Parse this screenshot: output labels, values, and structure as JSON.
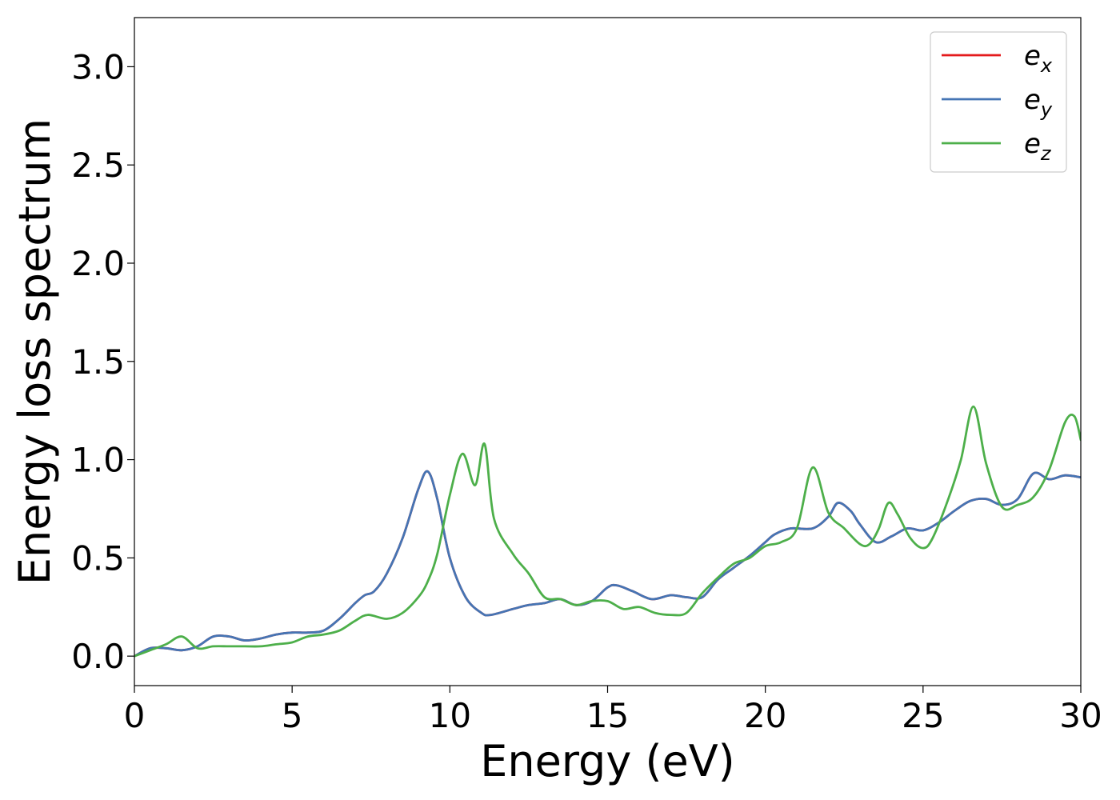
{
  "chart_data": {
    "type": "line",
    "xlabel": "Energy (eV)",
    "ylabel": "Energy loss spectrum",
    "xlim": [
      0,
      30
    ],
    "ylim": [
      -0.15,
      3.25
    ],
    "xticks": [
      0,
      5,
      10,
      15,
      20,
      25,
      30
    ],
    "xtick_labels": [
      "0",
      "5",
      "10",
      "15",
      "20",
      "25",
      "30"
    ],
    "yticks": [
      0.0,
      0.5,
      1.0,
      1.5,
      2.0,
      2.5,
      3.0
    ],
    "ytick_labels": [
      "0.0",
      "0.5",
      "1.0",
      "1.5",
      "2.0",
      "2.5",
      "3.0"
    ],
    "grid": false,
    "legend_position": "top-right",
    "series": [
      {
        "name": "e_x",
        "legend_base": "e",
        "legend_sub": "x",
        "color": "#e41a1c",
        "x": [
          0,
          0.5,
          1.0,
          1.5,
          2.0,
          2.5,
          3.0,
          3.5,
          4.0,
          4.5,
          5.0,
          5.5,
          6.0,
          6.5,
          7.0,
          7.3,
          7.6,
          8.0,
          8.5,
          9.0,
          9.3,
          9.6,
          10.0,
          10.5,
          11.0,
          11.3,
          12.0,
          12.5,
          13.0,
          13.5,
          14.0,
          14.5,
          15.0,
          15.3,
          15.8,
          16.4,
          17.0,
          17.5,
          18.0,
          18.5,
          19.0,
          19.5,
          20.0,
          20.3,
          20.8,
          21.5,
          22.0,
          22.3,
          22.7,
          23.0,
          23.5,
          24.0,
          24.5,
          25.0,
          25.5,
          26.0,
          26.5,
          27.0,
          27.5,
          28.0,
          28.5,
          29.0,
          29.5,
          30.0
        ],
        "y": [
          0.0,
          0.04,
          0.04,
          0.03,
          0.05,
          0.1,
          0.1,
          0.08,
          0.09,
          0.11,
          0.12,
          0.12,
          0.13,
          0.19,
          0.27,
          0.31,
          0.33,
          0.42,
          0.6,
          0.85,
          0.94,
          0.8,
          0.5,
          0.3,
          0.22,
          0.21,
          0.24,
          0.26,
          0.27,
          0.29,
          0.26,
          0.28,
          0.35,
          0.36,
          0.33,
          0.29,
          0.31,
          0.3,
          0.3,
          0.39,
          0.45,
          0.51,
          0.58,
          0.62,
          0.65,
          0.65,
          0.71,
          0.78,
          0.74,
          0.67,
          0.58,
          0.61,
          0.65,
          0.64,
          0.68,
          0.74,
          0.79,
          0.8,
          0.77,
          0.8,
          0.93,
          0.9,
          0.92,
          0.91
        ]
      },
      {
        "name": "e_y",
        "legend_base": "e",
        "legend_sub": "y",
        "color": "#4575b4",
        "x": [
          0,
          0.5,
          1.0,
          1.5,
          2.0,
          2.5,
          3.0,
          3.5,
          4.0,
          4.5,
          5.0,
          5.5,
          6.0,
          6.5,
          7.0,
          7.3,
          7.6,
          8.0,
          8.5,
          9.0,
          9.3,
          9.6,
          10.0,
          10.5,
          11.0,
          11.3,
          12.0,
          12.5,
          13.0,
          13.5,
          14.0,
          14.5,
          15.0,
          15.3,
          15.8,
          16.4,
          17.0,
          17.5,
          18.0,
          18.5,
          19.0,
          19.5,
          20.0,
          20.3,
          20.8,
          21.5,
          22.0,
          22.3,
          22.7,
          23.0,
          23.5,
          24.0,
          24.5,
          25.0,
          25.5,
          26.0,
          26.5,
          27.0,
          27.5,
          28.0,
          28.5,
          29.0,
          29.5,
          30.0
        ],
        "y": [
          0.0,
          0.04,
          0.04,
          0.03,
          0.05,
          0.1,
          0.1,
          0.08,
          0.09,
          0.11,
          0.12,
          0.12,
          0.13,
          0.19,
          0.27,
          0.31,
          0.33,
          0.42,
          0.6,
          0.85,
          0.94,
          0.8,
          0.5,
          0.3,
          0.22,
          0.21,
          0.24,
          0.26,
          0.27,
          0.29,
          0.26,
          0.28,
          0.35,
          0.36,
          0.33,
          0.29,
          0.31,
          0.3,
          0.3,
          0.39,
          0.45,
          0.51,
          0.58,
          0.62,
          0.65,
          0.65,
          0.71,
          0.78,
          0.74,
          0.67,
          0.58,
          0.61,
          0.65,
          0.64,
          0.68,
          0.74,
          0.79,
          0.8,
          0.77,
          0.8,
          0.93,
          0.9,
          0.92,
          0.91
        ]
      },
      {
        "name": "e_z",
        "legend_base": "e",
        "legend_sub": "z",
        "color": "#4daf4a",
        "x": [
          0,
          0.5,
          1.0,
          1.5,
          2.0,
          2.5,
          3.0,
          3.5,
          4.0,
          4.5,
          5.0,
          5.5,
          6.0,
          6.5,
          7.0,
          7.4,
          8.0,
          8.5,
          9.0,
          9.3,
          9.6,
          10.0,
          10.4,
          10.8,
          11.1,
          11.4,
          12.0,
          12.5,
          13.0,
          13.5,
          14.0,
          14.5,
          15.0,
          15.5,
          16.0,
          16.5,
          17.0,
          17.5,
          18.0,
          18.5,
          19.0,
          19.5,
          20.0,
          20.5,
          21.0,
          21.5,
          22.0,
          22.5,
          23.0,
          23.3,
          23.6,
          23.9,
          24.2,
          24.6,
          25.0,
          25.3,
          25.8,
          26.2,
          26.6,
          27.0,
          27.5,
          28.0,
          28.5,
          29.0,
          29.5,
          29.8,
          30.0
        ],
        "y": [
          0.0,
          0.03,
          0.06,
          0.1,
          0.04,
          0.05,
          0.05,
          0.05,
          0.05,
          0.06,
          0.07,
          0.1,
          0.11,
          0.13,
          0.18,
          0.21,
          0.19,
          0.22,
          0.3,
          0.38,
          0.52,
          0.82,
          1.03,
          0.87,
          1.08,
          0.7,
          0.52,
          0.42,
          0.3,
          0.29,
          0.26,
          0.28,
          0.28,
          0.24,
          0.25,
          0.22,
          0.21,
          0.22,
          0.32,
          0.4,
          0.47,
          0.5,
          0.56,
          0.58,
          0.65,
          0.96,
          0.73,
          0.65,
          0.57,
          0.57,
          0.65,
          0.78,
          0.72,
          0.6,
          0.55,
          0.6,
          0.8,
          1.0,
          1.27,
          0.98,
          0.76,
          0.77,
          0.81,
          0.95,
          1.19,
          1.22,
          1.1
        ]
      }
    ]
  }
}
